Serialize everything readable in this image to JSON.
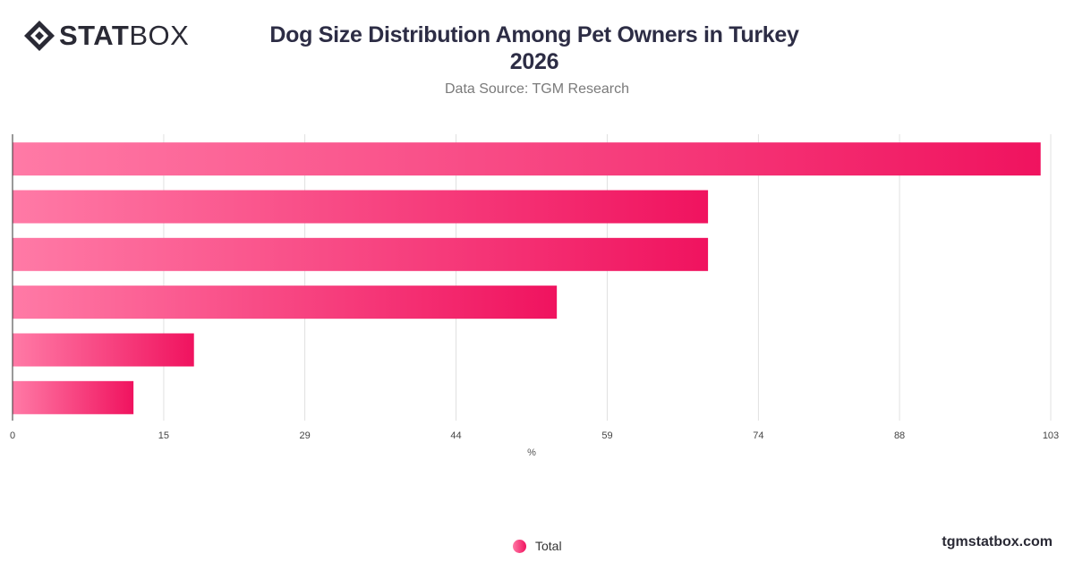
{
  "brand": {
    "logo_bold": "STAT",
    "logo_light": "BOX",
    "footer": "tgmstatbox.com"
  },
  "header": {
    "title_line1": "Dog Size Distribution Among Pet Owners in Turkey",
    "title_line2": "2026",
    "subtitle": "Data Source: TGM Research"
  },
  "chart_data": {
    "type": "bar",
    "orientation": "horizontal",
    "categories": [
      "",
      "",
      "",
      "",
      "",
      ""
    ],
    "series": [
      {
        "name": "Total",
        "values": [
          102,
          69,
          69,
          54,
          18,
          12
        ]
      }
    ],
    "xlabel": "%",
    "ylabel": "",
    "xlim": [
      0,
      103
    ],
    "xticks": [
      0,
      15,
      29,
      44,
      59,
      74,
      88,
      103
    ],
    "grid": true,
    "legend": "bottom-center",
    "colors": {
      "bar_start": "#ff7aa6",
      "bar_end": "#f0135f",
      "grid": "#e0e0e0",
      "axis": "#333333"
    }
  }
}
